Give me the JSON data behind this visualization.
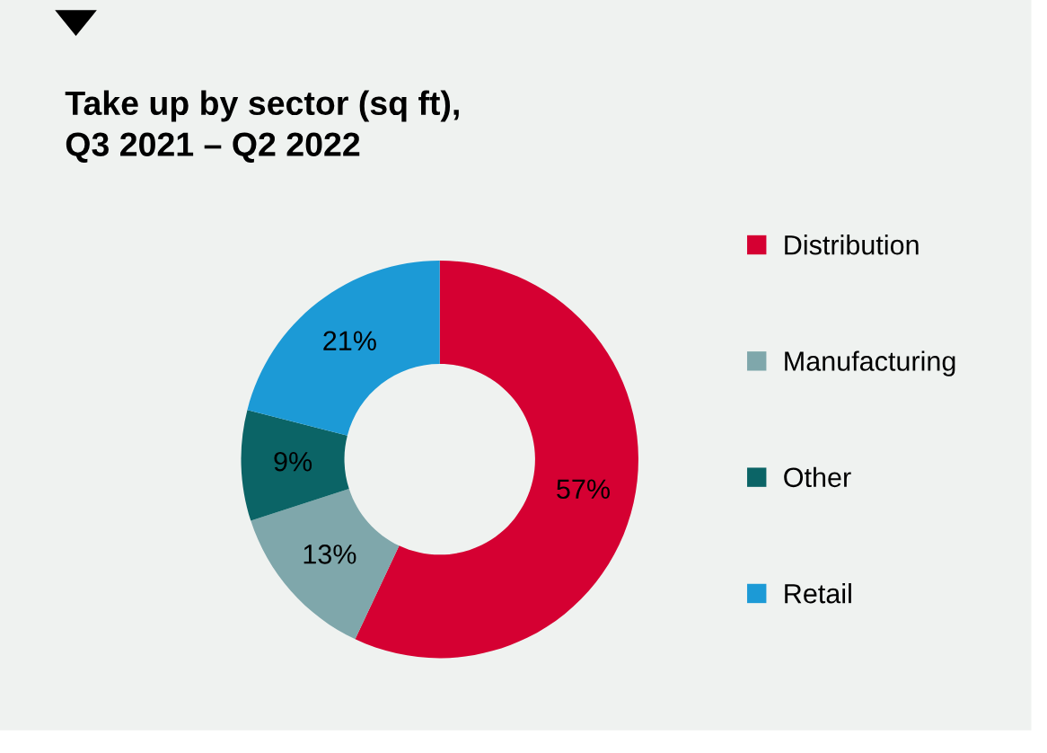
{
  "chart_data": {
    "type": "donut",
    "title": "Take up by sector (sq ft),\nQ3 2021 – Q2 2022",
    "categories": [
      "Distribution",
      "Manufacturing",
      "Other",
      "Retail"
    ],
    "values": [
      57,
      13,
      9,
      21
    ],
    "colors": [
      "#d50032",
      "#7fa7ab",
      "#0b6466",
      "#1c9ad6"
    ],
    "value_labels": [
      "57%",
      "13%",
      "9%",
      "21%"
    ],
    "legend": "right"
  }
}
